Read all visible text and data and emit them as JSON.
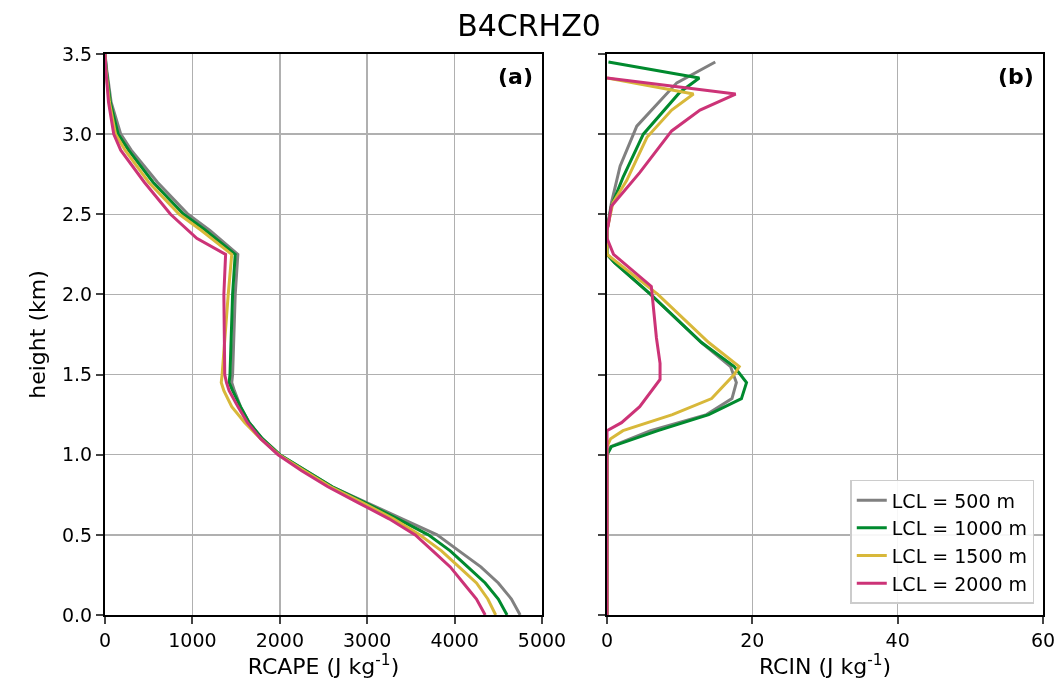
{
  "chart_data": [
    {
      "type": "line",
      "title": "B4CRHZ0",
      "xlabel": "RCAPE (J kg$^{-1}$)",
      "ylabel": "height (km)",
      "annotations": [
        "(a)"
      ],
      "grid": true,
      "legend": false,
      "line_style": "solid",
      "marker": "none",
      "xlim": [
        0,
        5000
      ],
      "xticks": [
        0,
        1000,
        2000,
        3000,
        4000,
        5000
      ],
      "ylim": [
        0,
        3.5
      ],
      "yticks": [
        {
          "value": 0,
          "label": "0.0"
        },
        {
          "value": 0.5,
          "label": "0.5"
        },
        {
          "value": 1,
          "label": "1.0"
        },
        {
          "value": 1.5,
          "label": "1.5"
        },
        {
          "value": 2,
          "label": "2.0"
        },
        {
          "value": 2.5,
          "label": "2.5"
        },
        {
          "value": 3,
          "label": "3.0"
        },
        {
          "value": 3.5,
          "label": "3.5"
        }
      ],
      "series": [
        {
          "color": "#808080",
          "x": [
            4750,
            4650,
            4500,
            4300,
            4050,
            3800,
            3400,
            3000,
            2600,
            2300,
            2000,
            1800,
            1650,
            1550,
            1480,
            1450,
            1460,
            1490,
            1520,
            1200,
            950,
            600,
            300,
            180,
            70,
            20,
            0
          ],
          "values": [
            0,
            0.1,
            0.2,
            0.3,
            0.4,
            0.5,
            0.6,
            0.7,
            0.8,
            0.9,
            1.0,
            1.1,
            1.2,
            1.3,
            1.4,
            1.45,
            1.5,
            2.0,
            2.25,
            2.4,
            2.5,
            2.7,
            2.9,
            3.0,
            3.2,
            3.4,
            3.5
          ]
        },
        {
          "color": "#008a2e",
          "x": [
            4600,
            4500,
            4350,
            4150,
            3950,
            3700,
            3350,
            2980,
            2600,
            2300,
            2000,
            1800,
            1650,
            1550,
            1460,
            1420,
            1430,
            1460,
            1490,
            1150,
            900,
            550,
            270,
            150,
            60,
            15,
            0
          ],
          "values": [
            0,
            0.1,
            0.2,
            0.3,
            0.4,
            0.5,
            0.6,
            0.7,
            0.8,
            0.9,
            1.0,
            1.1,
            1.2,
            1.3,
            1.4,
            1.45,
            1.5,
            2.0,
            2.25,
            2.4,
            2.5,
            2.7,
            2.9,
            3.0,
            3.2,
            3.4,
            3.5
          ]
        },
        {
          "color": "#d8b83a",
          "x": [
            4470,
            4380,
            4250,
            4050,
            3850,
            3600,
            3300,
            2950,
            2580,
            2280,
            1990,
            1780,
            1600,
            1450,
            1360,
            1330,
            1340,
            1410,
            1450,
            1100,
            850,
            500,
            230,
            120,
            50,
            10,
            0
          ],
          "values": [
            0,
            0.1,
            0.2,
            0.3,
            0.4,
            0.5,
            0.6,
            0.7,
            0.8,
            0.9,
            1.0,
            1.1,
            1.2,
            1.3,
            1.4,
            1.45,
            1.5,
            2.0,
            2.25,
            2.4,
            2.5,
            2.7,
            2.9,
            3.0,
            3.2,
            3.4,
            3.5
          ]
        },
        {
          "color": "#cc3377",
          "x": [
            4350,
            4250,
            4100,
            3950,
            3750,
            3550,
            3250,
            2900,
            2550,
            2250,
            1980,
            1780,
            1630,
            1520,
            1420,
            1390,
            1370,
            1360,
            1380,
            1050,
            750,
            450,
            180,
            100,
            40,
            10,
            0
          ],
          "values": [
            0,
            0.1,
            0.2,
            0.3,
            0.4,
            0.5,
            0.6,
            0.7,
            0.8,
            0.9,
            1.0,
            1.1,
            1.2,
            1.3,
            1.4,
            1.45,
            1.5,
            2.0,
            2.25,
            2.35,
            2.5,
            2.7,
            2.9,
            3.0,
            3.2,
            3.4,
            3.5
          ]
        }
      ]
    },
    {
      "type": "line",
      "xlabel": "RCIN (J kg$^{-1}$)",
      "annotations": [
        "(b)"
      ],
      "grid": true,
      "legend": "bottom right",
      "line_style": "solid",
      "marker": "none",
      "tick_labels": "x",
      "xlim": [
        0,
        60
      ],
      "xticks": [
        0,
        20,
        40,
        60
      ],
      "ylim": [
        0,
        3.5
      ],
      "yticks": [
        0,
        0.5,
        1,
        1.5,
        2,
        2.5,
        3,
        3.5
      ],
      "series": [
        {
          "name": "LCL = 500 m",
          "color": "#808080",
          "x": [
            0,
            0,
            0.5,
            6,
            13.7,
            17.2,
            17.8,
            17,
            13,
            6,
            1,
            0,
            0,
            0.6,
            1.8,
            4.1,
            9.6,
            14.9
          ],
          "values": [
            0,
            1.0,
            1.05,
            1.15,
            1.25,
            1.35,
            1.45,
            1.55,
            1.7,
            2.0,
            2.2,
            2.25,
            2.4,
            2.57,
            2.8,
            3.05,
            3.32,
            3.45
          ]
        },
        {
          "name": "LCL = 1000 m",
          "color": "#008a2e",
          "x": [
            0,
            0,
            0.6,
            7,
            14,
            18.5,
            19.2,
            17.5,
            13,
            6,
            1,
            0,
            0,
            0.6,
            2.2,
            5.0,
            10.0,
            12.7,
            0.2
          ],
          "values": [
            0,
            1.0,
            1.05,
            1.15,
            1.25,
            1.35,
            1.45,
            1.55,
            1.7,
            2.0,
            2.2,
            2.25,
            2.4,
            2.55,
            2.73,
            3.0,
            3.26,
            3.35,
            3.45
          ]
        },
        {
          "name": "LCL = 1500 m",
          "color": "#d8b83a",
          "x": [
            0,
            0,
            0.5,
            2.2,
            9,
            14.4,
            17.5,
            18.2,
            14,
            7,
            0,
            0,
            0.8,
            2.7,
            5.5,
            8.9,
            11.9,
            0
          ],
          "values": [
            0,
            1.05,
            1.1,
            1.15,
            1.25,
            1.35,
            1.5,
            1.55,
            1.7,
            2.0,
            2.25,
            2.4,
            2.57,
            2.71,
            2.98,
            3.15,
            3.25,
            3.35
          ]
        },
        {
          "name": "LCL = 2000 m",
          "color": "#cc3377",
          "x": [
            0,
            0,
            2,
            4.5,
            7.3,
            7.3,
            6.8,
            6.1,
            0.9,
            0,
            0,
            0.2,
            0.6,
            4.5,
            8.9,
            12.8,
            17.7,
            0
          ],
          "values": [
            0,
            1.15,
            1.2,
            1.3,
            1.47,
            1.57,
            1.73,
            2.05,
            2.25,
            2.35,
            2.4,
            2.44,
            2.55,
            2.76,
            3.02,
            3.15,
            3.25,
            3.35
          ]
        }
      ]
    }
  ]
}
